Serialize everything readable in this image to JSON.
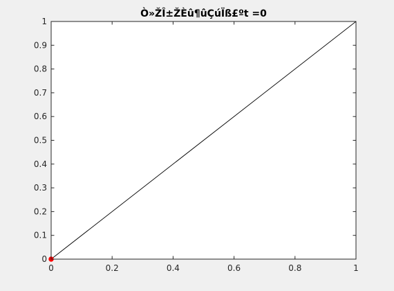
{
  "chart_data": {
    "type": "line",
    "title": "Ò»ŽÎ±ŽÈû¶ûÇúÏß£ºt =0",
    "xlabel": "",
    "ylabel": "",
    "xlim": [
      0,
      1
    ],
    "ylim": [
      0,
      1
    ],
    "x_ticks": [
      "0",
      "0.2",
      "0.4",
      "0.6",
      "0.8",
      "1"
    ],
    "y_ticks": [
      "0",
      "0.1",
      "0.2",
      "0.3",
      "0.4",
      "0.5",
      "0.6",
      "0.7",
      "0.8",
      "0.9",
      "1"
    ],
    "grid": false,
    "series": [
      {
        "x": [
          0,
          1
        ],
        "y": [
          0,
          1
        ],
        "color": "#000000",
        "style": "line"
      },
      {
        "x": [
          0
        ],
        "y": [
          0
        ],
        "color": "#ff0000",
        "style": "marker"
      }
    ]
  },
  "colors": {
    "figure_background": "#f0f0f0",
    "axes_background": "#ffffff",
    "axis_color": "#262626"
  }
}
